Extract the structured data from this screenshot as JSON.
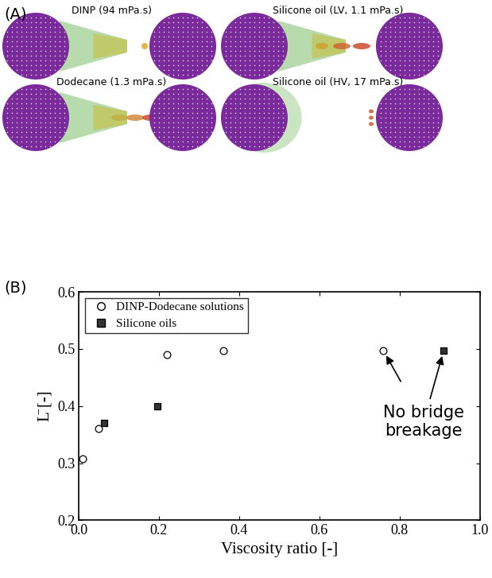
{
  "panel_labels": [
    "(A)",
    "(B)"
  ],
  "snapshots": [
    {
      "title": "DINP (94 mPa.s)"
    },
    {
      "title": "Silicone oil (LV, 1.1 mPa.s)"
    },
    {
      "title": "Dodecane (1.3 mPa.s)"
    },
    {
      "title": "Silicone oil (HV, 17 mPa.s)"
    }
  ],
  "chart_data": {
    "type": "scatter",
    "x_label": "Viscosity ratio [-]",
    "y_label": "L̄ [-]",
    "xlim": [
      0.0,
      1.0
    ],
    "xticks": [
      0.0,
      0.2,
      0.4,
      0.6,
      0.8,
      1.0
    ],
    "ylim": [
      0.2,
      0.6
    ],
    "yticks": [
      0.2,
      0.3,
      0.4,
      0.5,
      0.6
    ],
    "legend": "upper left",
    "series": [
      {
        "name": "DINP-Dodecane solutions",
        "color": "#000000",
        "marker": "open_circle",
        "x": [
          0.01,
          0.05,
          0.22,
          0.36,
          0.76
        ],
        "values": [
          0.308,
          0.36,
          0.49,
          0.497,
          0.497
        ]
      },
      {
        "name": "Silicone oils",
        "color": "#333333",
        "marker": "square",
        "x": [
          0.063,
          0.197,
          0.91
        ],
        "values": [
          0.37,
          0.4,
          0.497
        ]
      }
    ],
    "annotations": [
      {
        "text": "No bridge\nbreakage",
        "points": [
          [
            0.76,
            0.497
          ],
          [
            0.91,
            0.497
          ]
        ]
      }
    ]
  }
}
